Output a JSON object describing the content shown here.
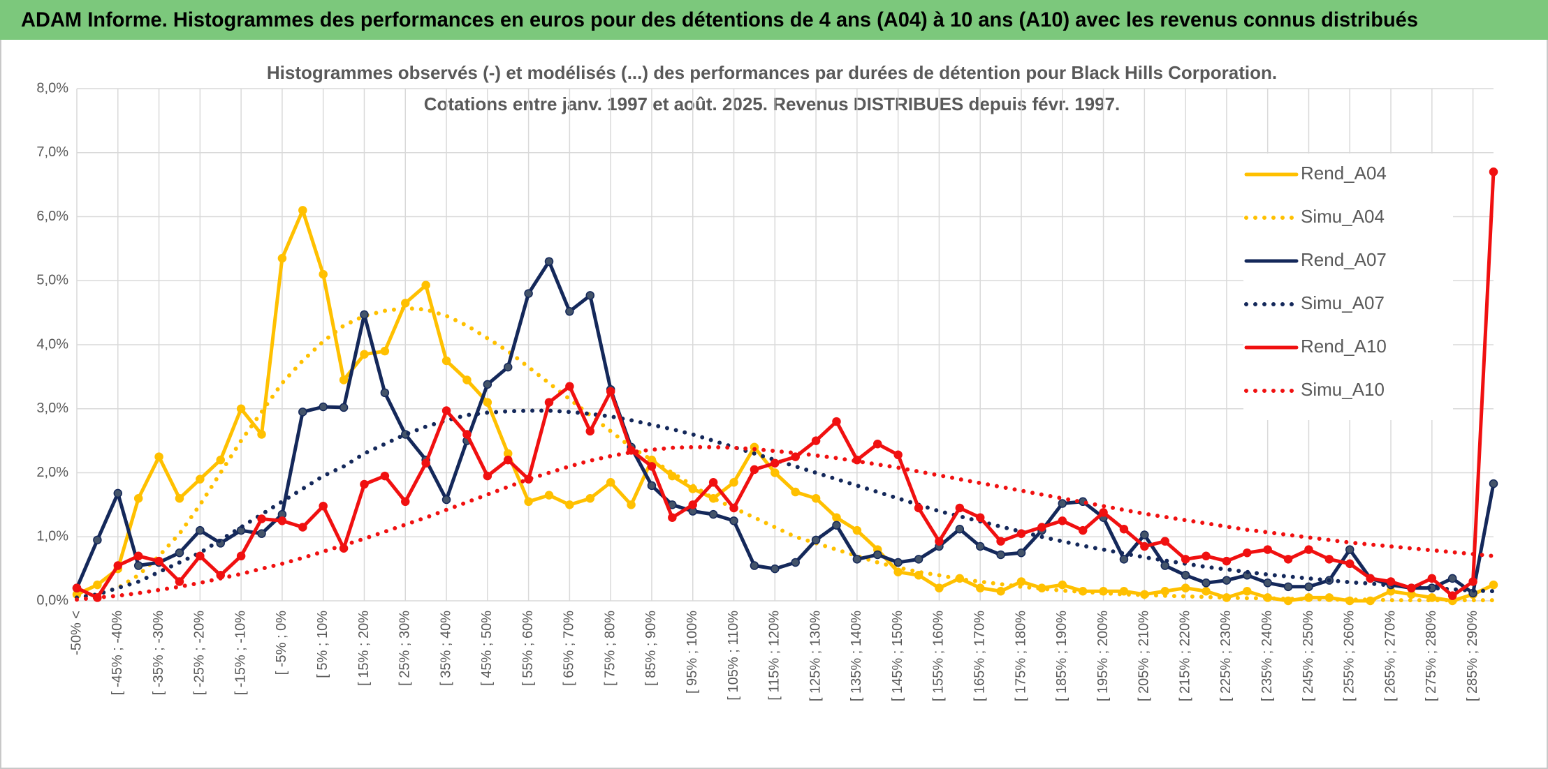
{
  "header": {
    "title": "ADAM Informe. Histogrammes des performances en euros pour des détentions de 4 ans (A04) à 10 ans (A10) avec les revenus connus distribués"
  },
  "chart_data": {
    "type": "line",
    "title": "Histogrammes observés (-) et modélisés (...) des performances par durées de détention pour Black Hills Corporation.",
    "subtitle": "Cotations entre janv. 1997 et août. 2025. Revenus DISTRIBUES depuis févr. 1997.",
    "categories": [
      "-50% <",
      null,
      "[ -45% ; -40%",
      null,
      "[ -35% ; -30%",
      null,
      "[ -25% ; -20%",
      null,
      "[ -15% ; -10%",
      null,
      "[ -5% ; 0%",
      null,
      "[ 5% ; 10%",
      null,
      "[ 15% ; 20%",
      null,
      "[ 25% ; 30%",
      null,
      "[ 35% ; 40%",
      null,
      "[ 45% ; 50%",
      null,
      "[ 55% ; 60%",
      null,
      "[ 65% ; 70%",
      null,
      "[ 75% ; 80%",
      null,
      "[ 85% ; 90%",
      null,
      "[ 95% ; 100%",
      null,
      "[ 105% ; 110%",
      null,
      "[ 115% ; 120%",
      null,
      "[ 125% ; 130%",
      null,
      "[ 135% ; 140%",
      null,
      "[ 145% ; 150%",
      null,
      "[ 155% ; 160%",
      null,
      "[ 165% ; 170%",
      null,
      "[ 175% ; 180%",
      null,
      "[ 185% ; 190%",
      null,
      "[ 195% ; 200%",
      null,
      "[ 205% ; 210%",
      null,
      "[ 215% ; 220%",
      null,
      "[ 225% ; 230%",
      null,
      "[ 235% ; 240%",
      null,
      "[ 245% ; 250%",
      null,
      "[ 255% ; 260%",
      null,
      "[ 265% ; 270%",
      null,
      "[ 275% ; 280%",
      null,
      "[ 285% ; 290%",
      null
    ],
    "ylim": [
      0,
      8
    ],
    "yticks": [
      {
        "value": 0,
        "label": "0,0%"
      },
      {
        "value": 1,
        "label": "1,0%"
      },
      {
        "value": 2,
        "label": "2,0%"
      },
      {
        "value": 3,
        "label": "3,0%"
      },
      {
        "value": 4,
        "label": "4,0%"
      },
      {
        "value": 5,
        "label": "5,0%"
      },
      {
        "value": 6,
        "label": "6,0%"
      },
      {
        "value": 7,
        "label": "7,0%"
      },
      {
        "value": 8,
        "label": "8,0%"
      }
    ],
    "grid": true,
    "legend": "right",
    "series": [
      {
        "name": "Rend_A04",
        "color": "#ffc000",
        "line_style": "solid",
        "markers": true,
        "values": [
          0.1,
          0.25,
          0.5,
          1.6,
          2.25,
          1.6,
          1.9,
          2.2,
          3.0,
          2.6,
          5.35,
          6.1,
          5.1,
          3.45,
          3.85,
          3.9,
          4.65,
          4.93,
          3.75,
          3.45,
          3.1,
          2.3,
          1.55,
          1.65,
          1.5,
          1.6,
          1.85,
          1.5,
          2.2,
          1.95,
          1.75,
          1.6,
          1.85,
          2.4,
          2.0,
          1.7,
          1.6,
          1.3,
          1.1,
          0.8,
          0.45,
          0.4,
          0.2,
          0.35,
          0.2,
          0.15,
          0.3,
          0.2,
          0.25,
          0.15,
          0.15,
          0.15,
          0.1,
          0.15,
          0.2,
          0.15,
          0.05,
          0.15,
          0.05,
          0.0,
          0.05,
          0.05,
          0.0,
          0.0,
          0.15,
          0.1,
          0.05,
          0.0,
          0.1,
          0.25
        ]
      },
      {
        "name": "Simu_A04",
        "color": "#ffc000",
        "line_style": "dotted",
        "markers": false,
        "values": [
          0.05,
          0.1,
          0.2,
          0.4,
          0.7,
          1.05,
          1.5,
          2.0,
          2.5,
          2.95,
          3.4,
          3.75,
          4.05,
          4.3,
          4.45,
          4.53,
          4.57,
          4.55,
          4.45,
          4.3,
          4.1,
          3.9,
          3.65,
          3.4,
          3.15,
          2.9,
          2.65,
          2.4,
          2.2,
          2.0,
          1.8,
          1.6,
          1.45,
          1.3,
          1.15,
          1.0,
          0.9,
          0.8,
          0.7,
          0.6,
          0.52,
          0.45,
          0.4,
          0.34,
          0.3,
          0.26,
          0.22,
          0.19,
          0.16,
          0.14,
          0.12,
          0.1,
          0.09,
          0.08,
          0.07,
          0.06,
          0.05,
          0.04,
          0.04,
          0.03,
          0.03,
          0.02,
          0.02,
          0.02,
          0.01,
          0.01,
          0.01,
          0.01,
          0.01,
          0.01
        ]
      },
      {
        "name": "Rend_A07",
        "color": "#14285a",
        "line_style": "solid",
        "markers": true,
        "values": [
          0.2,
          0.95,
          1.68,
          0.55,
          0.6,
          0.75,
          1.1,
          0.9,
          1.1,
          1.05,
          1.35,
          2.95,
          3.03,
          3.02,
          4.47,
          3.25,
          2.6,
          2.2,
          1.58,
          2.5,
          3.38,
          3.65,
          4.8,
          5.3,
          4.52,
          4.77,
          3.3,
          2.4,
          1.8,
          1.5,
          1.4,
          1.35,
          1.25,
          0.55,
          0.5,
          0.6,
          0.95,
          1.18,
          0.65,
          0.72,
          0.6,
          0.65,
          0.85,
          1.12,
          0.85,
          0.72,
          0.75,
          1.1,
          1.52,
          1.55,
          1.3,
          0.65,
          1.03,
          0.55,
          0.4,
          0.28,
          0.32,
          0.4,
          0.28,
          0.22,
          0.22,
          0.32,
          0.8,
          0.35,
          0.25,
          0.2,
          0.2,
          0.35,
          0.12,
          1.83
        ]
      },
      {
        "name": "Simu_A07",
        "color": "#14285a",
        "line_style": "dotted",
        "markers": false,
        "values": [
          0.05,
          0.1,
          0.2,
          0.3,
          0.45,
          0.6,
          0.75,
          0.95,
          1.15,
          1.35,
          1.55,
          1.75,
          1.95,
          2.1,
          2.3,
          2.45,
          2.6,
          2.72,
          2.82,
          2.9,
          2.94,
          2.96,
          2.97,
          2.97,
          2.95,
          2.92,
          2.88,
          2.82,
          2.75,
          2.68,
          2.6,
          2.5,
          2.4,
          2.3,
          2.2,
          2.1,
          2.0,
          1.9,
          1.8,
          1.7,
          1.6,
          1.5,
          1.4,
          1.32,
          1.24,
          1.16,
          1.08,
          1.0,
          0.93,
          0.86,
          0.8,
          0.74,
          0.68,
          0.63,
          0.58,
          0.53,
          0.49,
          0.45,
          0.41,
          0.38,
          0.35,
          0.32,
          0.29,
          0.27,
          0.24,
          0.22,
          0.2,
          0.18,
          0.16,
          0.15
        ]
      },
      {
        "name": "Rend_A10",
        "color": "#f01010",
        "line_style": "solid",
        "markers": true,
        "values": [
          0.2,
          0.05,
          0.55,
          0.7,
          0.62,
          0.3,
          0.7,
          0.4,
          0.7,
          1.28,
          1.25,
          1.15,
          1.48,
          0.82,
          1.82,
          1.95,
          1.55,
          2.15,
          2.97,
          2.6,
          1.95,
          2.2,
          1.9,
          3.1,
          3.35,
          2.65,
          3.27,
          2.35,
          2.1,
          1.3,
          1.5,
          1.85,
          1.45,
          2.05,
          2.15,
          2.25,
          2.5,
          2.8,
          2.2,
          2.45,
          2.28,
          1.45,
          0.93,
          1.45,
          1.3,
          0.93,
          1.05,
          1.15,
          1.25,
          1.1,
          1.38,
          1.12,
          0.85,
          0.93,
          0.65,
          0.7,
          0.62,
          0.75,
          0.8,
          0.65,
          0.8,
          0.65,
          0.58,
          0.35,
          0.3,
          0.2,
          0.35,
          0.08,
          0.3,
          6.7
        ]
      },
      {
        "name": "Simu_A10",
        "color": "#f01010",
        "line_style": "dotted",
        "markers": false,
        "values": [
          0.02,
          0.05,
          0.08,
          0.12,
          0.17,
          0.22,
          0.28,
          0.35,
          0.42,
          0.5,
          0.58,
          0.67,
          0.77,
          0.87,
          0.97,
          1.08,
          1.19,
          1.3,
          1.42,
          1.54,
          1.66,
          1.78,
          1.9,
          2.0,
          2.1,
          2.19,
          2.26,
          2.32,
          2.36,
          2.39,
          2.4,
          2.4,
          2.39,
          2.37,
          2.34,
          2.31,
          2.27,
          2.23,
          2.18,
          2.13,
          2.08,
          2.02,
          1.96,
          1.9,
          1.84,
          1.78,
          1.72,
          1.66,
          1.6,
          1.54,
          1.48,
          1.42,
          1.36,
          1.31,
          1.26,
          1.21,
          1.16,
          1.11,
          1.07,
          1.03,
          0.99,
          0.95,
          0.91,
          0.88,
          0.85,
          0.82,
          0.79,
          0.76,
          0.73,
          0.7
        ]
      }
    ]
  }
}
